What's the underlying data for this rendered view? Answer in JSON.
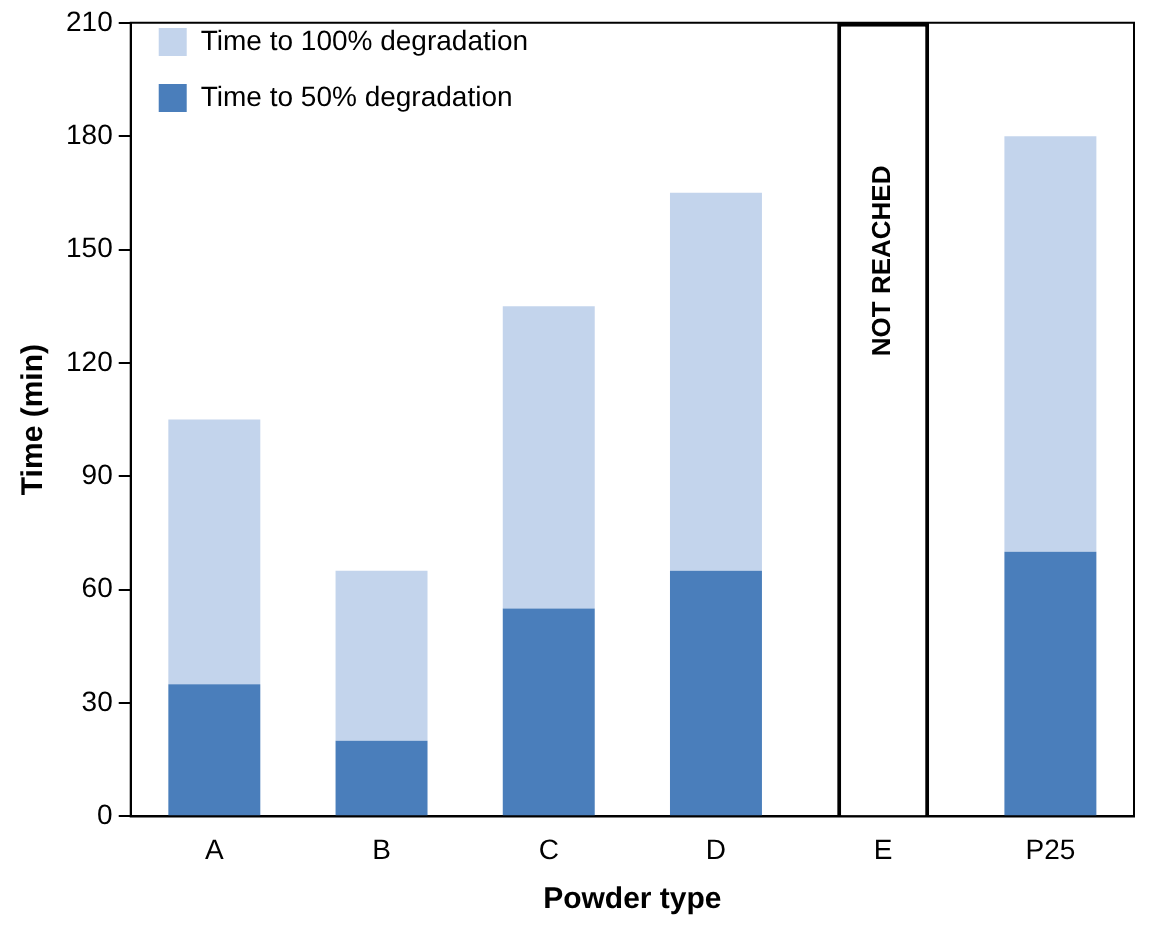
{
  "chart_data": {
    "type": "bar",
    "stacked": true,
    "xlabel": "Powder type",
    "ylabel": "Time (min)",
    "categories": [
      "A",
      "B",
      "C",
      "D",
      "E",
      "P25"
    ],
    "series": [
      {
        "name": "Time to 50% degradation",
        "color": "#4a7ebb",
        "values": [
          35,
          20,
          55,
          65,
          null,
          70
        ]
      },
      {
        "name": "Time to 100% degradation",
        "color": "#c3d4ec",
        "values": [
          70,
          45,
          80,
          100,
          null,
          110
        ]
      },
      {
        "color": "#000000",
        "values": [
          null,
          null,
          null,
          null,
          210,
          null
        ]
      }
    ],
    "annotations": [
      "NOT REACHED"
    ],
    "ylim": [
      0,
      210
    ],
    "yticks": [
      0,
      30,
      60,
      90,
      120,
      150,
      180,
      210
    ],
    "grid": false,
    "legend": "top left"
  }
}
